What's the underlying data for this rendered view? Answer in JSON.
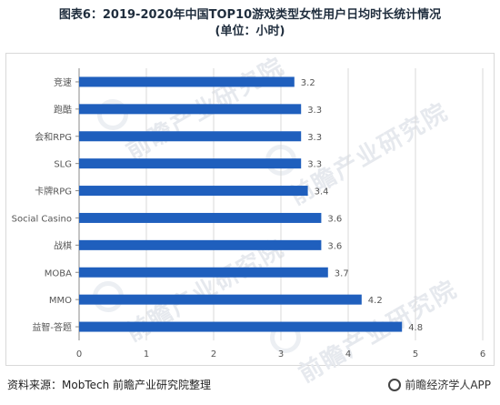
{
  "title_line1": "图表6：2019-2020年中国TOP10游戏类型女性用户日均时长统计情况",
  "title_line2": "(单位：小时)",
  "source": "资料来源：MobTech 前瞻产业研究院整理",
  "brand": "前瞻经济学人APP",
  "watermark": "前瞻产业研究院",
  "colors": {
    "bar": "#1f5fbd",
    "grid": "#d9d9d9",
    "axis": "#888888"
  },
  "chart_data": {
    "type": "bar",
    "orientation": "horizontal",
    "categories": [
      "竞速",
      "跑酷",
      "会和RPG",
      "SLG",
      "卡牌RPG",
      "Social Casino",
      "战棋",
      "MOBA",
      "MMO",
      "益智-答题"
    ],
    "values": [
      3.2,
      3.3,
      3.3,
      3.3,
      3.4,
      3.6,
      3.6,
      3.7,
      4.2,
      4.8
    ],
    "data_labels": [
      "3.2",
      "3.3",
      "3.3",
      "3.3",
      "3.4",
      "3.6",
      "3.6",
      "3.7",
      "4.2",
      "4.8"
    ],
    "xlim": [
      0,
      6
    ],
    "xticks": [
      "0",
      "1",
      "2",
      "3",
      "4",
      "5",
      "6"
    ],
    "grid": true
  }
}
